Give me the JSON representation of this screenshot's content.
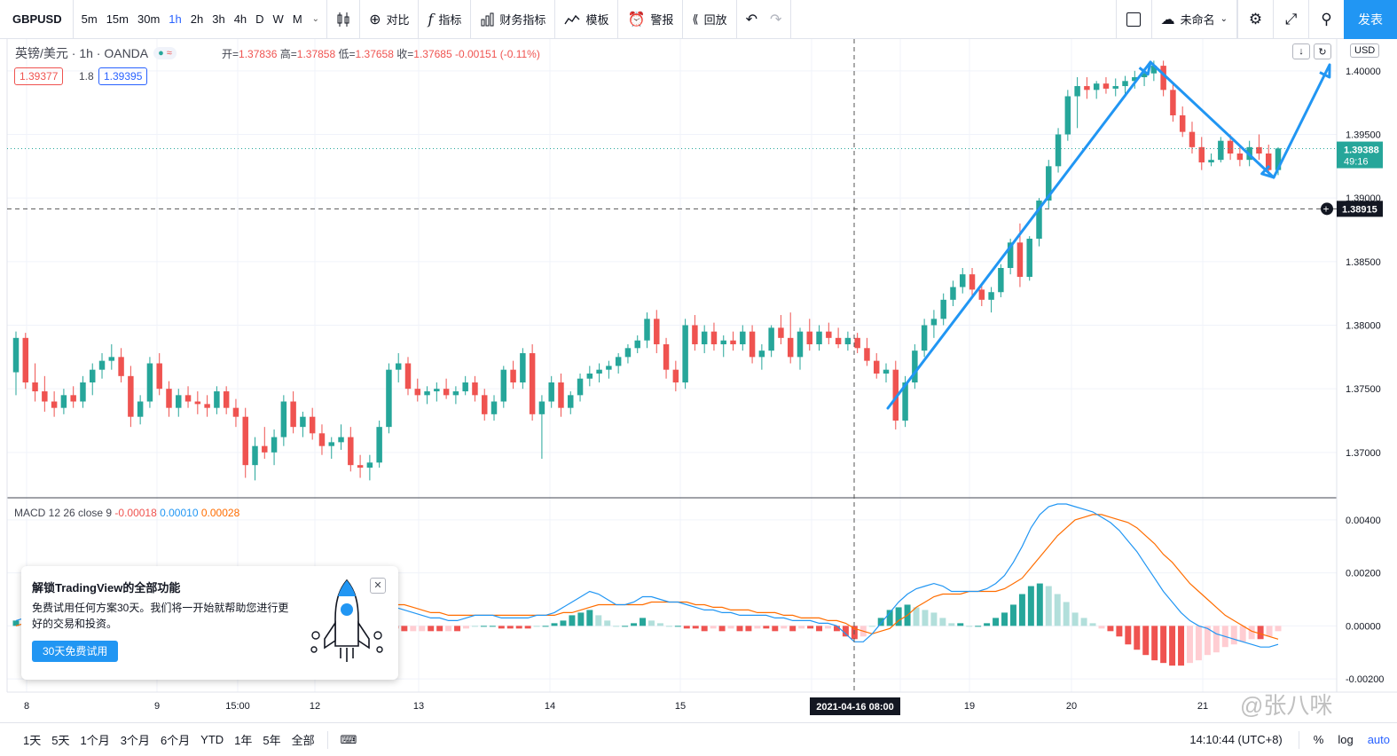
{
  "toolbar": {
    "symbol": "GBPUSD",
    "intervals": [
      "5m",
      "15m",
      "30m",
      "1h",
      "2h",
      "3h",
      "4h",
      "D",
      "W",
      "M"
    ],
    "active_interval": "1h",
    "compare_label": "对比",
    "indicators_label": "指标",
    "financials_label": "财务指标",
    "templates_label": "模板",
    "alert_label": "警报",
    "replay_label": "回放",
    "layout_name": "未命名",
    "publish_label": "发表"
  },
  "legend": {
    "title": "英镑/美元 · 1h · OANDA",
    "open_label": "开=",
    "open": "1.37836",
    "high_label": "高=",
    "high": "1.37858",
    "low_label": "低=",
    "low": "1.37658",
    "close_label": "收=",
    "close": "1.37685",
    "change": "-0.00151 (-0.11%)",
    "sell_price": "1.39377",
    "spread": "1.8",
    "buy_price": "1.39395"
  },
  "price_axis": {
    "currency": "USD",
    "current_price": "1.39388",
    "countdown": "49:16",
    "crosshair_price": "1.38915",
    "tick_labels": [
      "1.40000",
      "1.39500",
      "1.39000",
      "1.38500",
      "1.38000",
      "1.37500",
      "1.37000"
    ]
  },
  "macd": {
    "label": "MACD 12 26 close 9",
    "hist_value": "-0.00018",
    "macd_value": "0.00010",
    "signal_value": "0.00028",
    "tick_labels": [
      "0.00400",
      "0.00200",
      "0.00000",
      "-0.00200"
    ]
  },
  "time_axis": {
    "labels": [
      "8",
      "9",
      "15:00",
      "12",
      "13",
      "14",
      "15",
      "19",
      "20",
      "21"
    ],
    "crosshair_label": "2021-04-16  08:00"
  },
  "promo": {
    "title": "解锁TradingView的全部功能",
    "text": "免费试用任何方案30天。我们将一开始就帮助您进行更好的交易和投资。",
    "button_label": "30天免费试用"
  },
  "bottombar": {
    "ranges": [
      "1天",
      "5天",
      "1个月",
      "3个月",
      "6个月",
      "YTD",
      "1年",
      "5年",
      "全部"
    ],
    "clock": "14:10:44 (UTC+8)",
    "percent_label": "%",
    "log_label": "log",
    "auto_label": "auto"
  },
  "watermark": "@张八咪",
  "colors": {
    "up": "#26a69a",
    "down": "#ef5350",
    "macd_line": "#2196f3",
    "signal_line": "#ff6d00",
    "drawing": "#2196f3",
    "accent": "#2962ff",
    "publish": "#2196f3"
  },
  "chart_data": {
    "type": "candlestick",
    "symbol": "GBPUSD",
    "interval": "1h",
    "ylim": [
      1.3665,
      1.4025
    ],
    "ohlc": [
      [
        1.3763,
        1.3795,
        1.3745,
        1.379
      ],
      [
        1.379,
        1.3794,
        1.375,
        1.3755
      ],
      [
        1.3755,
        1.377,
        1.374,
        1.3748
      ],
      [
        1.3748,
        1.376,
        1.3732,
        1.374
      ],
      [
        1.374,
        1.3748,
        1.3728,
        1.3735
      ],
      [
        1.3735,
        1.375,
        1.373,
        1.3745
      ],
      [
        1.3745,
        1.3752,
        1.3735,
        1.374
      ],
      [
        1.374,
        1.376,
        1.3735,
        1.3755
      ],
      [
        1.3755,
        1.377,
        1.3745,
        1.3765
      ],
      [
        1.3765,
        1.3778,
        1.3758,
        1.3772
      ],
      [
        1.3772,
        1.3785,
        1.3765,
        1.3775
      ],
      [
        1.3775,
        1.3782,
        1.3755,
        1.376
      ],
      [
        1.376,
        1.3768,
        1.372,
        1.3728
      ],
      [
        1.3728,
        1.3745,
        1.3722,
        1.374
      ],
      [
        1.374,
        1.3775,
        1.3735,
        1.377
      ],
      [
        1.377,
        1.3778,
        1.3745,
        1.375
      ],
      [
        1.375,
        1.3756,
        1.3728,
        1.3735
      ],
      [
        1.3735,
        1.375,
        1.3728,
        1.3745
      ],
      [
        1.3745,
        1.3752,
        1.3735,
        1.374
      ],
      [
        1.374,
        1.3748,
        1.373,
        1.3738
      ],
      [
        1.3738,
        1.3745,
        1.3728,
        1.3735
      ],
      [
        1.3735,
        1.3752,
        1.373,
        1.3748
      ],
      [
        1.3748,
        1.3752,
        1.373,
        1.3735
      ],
      [
        1.3735,
        1.3742,
        1.372,
        1.3728
      ],
      [
        1.3728,
        1.3735,
        1.368,
        1.369
      ],
      [
        1.369,
        1.3712,
        1.3678,
        1.3705
      ],
      [
        1.3705,
        1.372,
        1.3695,
        1.37
      ],
      [
        1.37,
        1.3718,
        1.369,
        1.3712
      ],
      [
        1.3712,
        1.3745,
        1.3705,
        1.374
      ],
      [
        1.374,
        1.3748,
        1.3715,
        1.372
      ],
      [
        1.372,
        1.3732,
        1.3712,
        1.3728
      ],
      [
        1.3728,
        1.3735,
        1.371,
        1.3715
      ],
      [
        1.3715,
        1.3722,
        1.3698,
        1.3705
      ],
      [
        1.3705,
        1.3712,
        1.3695,
        1.3708
      ],
      [
        1.3708,
        1.3722,
        1.3702,
        1.3712
      ],
      [
        1.3712,
        1.372,
        1.3685,
        1.369
      ],
      [
        1.369,
        1.3698,
        1.368,
        1.3688
      ],
      [
        1.3688,
        1.3698,
        1.3678,
        1.3692
      ],
      [
        1.3692,
        1.3725,
        1.3688,
        1.372
      ],
      [
        1.372,
        1.377,
        1.3715,
        1.3765
      ],
      [
        1.3765,
        1.3778,
        1.3755,
        1.377
      ],
      [
        1.377,
        1.3775,
        1.3745,
        1.375
      ],
      [
        1.375,
        1.3758,
        1.374,
        1.3745
      ],
      [
        1.3745,
        1.3752,
        1.3738,
        1.3748
      ],
      [
        1.3748,
        1.3755,
        1.374,
        1.375
      ],
      [
        1.375,
        1.3758,
        1.3742,
        1.3745
      ],
      [
        1.3745,
        1.3752,
        1.3738,
        1.3748
      ],
      [
        1.3748,
        1.376,
        1.3745,
        1.3755
      ],
      [
        1.3755,
        1.376,
        1.374,
        1.3745
      ],
      [
        1.3745,
        1.375,
        1.3725,
        1.373
      ],
      [
        1.373,
        1.3745,
        1.3725,
        1.374
      ],
      [
        1.374,
        1.3768,
        1.3735,
        1.3765
      ],
      [
        1.3765,
        1.3772,
        1.375,
        1.3755
      ],
      [
        1.3755,
        1.3782,
        1.375,
        1.3778
      ],
      [
        1.3778,
        1.3785,
        1.3725,
        1.373
      ],
      [
        1.373,
        1.3745,
        1.3695,
        1.374
      ],
      [
        1.374,
        1.376,
        1.3735,
        1.3755
      ],
      [
        1.3755,
        1.3762,
        1.3728,
        1.3735
      ],
      [
        1.3735,
        1.3748,
        1.373,
        1.3745
      ],
      [
        1.3745,
        1.3762,
        1.374,
        1.3758
      ],
      [
        1.3758,
        1.3768,
        1.3752,
        1.3762
      ],
      [
        1.3762,
        1.377,
        1.3755,
        1.3765
      ],
      [
        1.3765,
        1.3772,
        1.3758,
        1.3768
      ],
      [
        1.3768,
        1.3778,
        1.3762,
        1.3775
      ],
      [
        1.3775,
        1.3785,
        1.377,
        1.3782
      ],
      [
        1.3782,
        1.3792,
        1.3778,
        1.3788
      ],
      [
        1.3788,
        1.381,
        1.3782,
        1.3805
      ],
      [
        1.3805,
        1.3812,
        1.3778,
        1.3785
      ],
      [
        1.3785,
        1.379,
        1.3758,
        1.3765
      ],
      [
        1.3765,
        1.3772,
        1.3748,
        1.3755
      ],
      [
        1.3755,
        1.3805,
        1.375,
        1.38
      ],
      [
        1.38,
        1.3808,
        1.378,
        1.3785
      ],
      [
        1.3785,
        1.38,
        1.3778,
        1.3795
      ],
      [
        1.3795,
        1.3802,
        1.378,
        1.3785
      ],
      [
        1.3785,
        1.3792,
        1.3775,
        1.3788
      ],
      [
        1.3788,
        1.3795,
        1.378,
        1.3785
      ],
      [
        1.3785,
        1.38,
        1.378,
        1.3795
      ],
      [
        1.3795,
        1.38,
        1.377,
        1.3775
      ],
      [
        1.3775,
        1.3785,
        1.3765,
        1.378
      ],
      [
        1.378,
        1.38,
        1.3775,
        1.3798
      ],
      [
        1.3798,
        1.3808,
        1.3785,
        1.379
      ],
      [
        1.379,
        1.381,
        1.377,
        1.3775
      ],
      [
        1.3775,
        1.3798,
        1.3765,
        1.3795
      ],
      [
        1.3795,
        1.3805,
        1.378,
        1.3785
      ],
      [
        1.3785,
        1.38,
        1.378,
        1.3795
      ],
      [
        1.3795,
        1.3802,
        1.3785,
        1.379
      ],
      [
        1.379,
        1.3798,
        1.3782,
        1.3785
      ],
      [
        1.3785,
        1.3795,
        1.378,
        1.379
      ],
      [
        1.379,
        1.3794,
        1.3778,
        1.3782
      ],
      [
        1.3782,
        1.379,
        1.3768,
        1.3772
      ],
      [
        1.3772,
        1.3778,
        1.3758,
        1.3762
      ],
      [
        1.3762,
        1.377,
        1.3755,
        1.3765
      ],
      [
        1.3765,
        1.3772,
        1.3718,
        1.3725
      ],
      [
        1.3725,
        1.376,
        1.372,
        1.3755
      ],
      [
        1.3755,
        1.3785,
        1.375,
        1.378
      ],
      [
        1.378,
        1.3805,
        1.3775,
        1.38
      ],
      [
        1.38,
        1.3812,
        1.379,
        1.3805
      ],
      [
        1.3805,
        1.3825,
        1.38,
        1.382
      ],
      [
        1.382,
        1.3835,
        1.3815,
        1.383
      ],
      [
        1.383,
        1.3845,
        1.3825,
        1.384
      ],
      [
        1.384,
        1.3845,
        1.3822,
        1.3828
      ],
      [
        1.3828,
        1.3832,
        1.3815,
        1.382
      ],
      [
        1.382,
        1.383,
        1.381,
        1.3826
      ],
      [
        1.3826,
        1.3848,
        1.3822,
        1.3845
      ],
      [
        1.3845,
        1.3868,
        1.384,
        1.3865
      ],
      [
        1.3865,
        1.388,
        1.383,
        1.3838
      ],
      [
        1.3838,
        1.387,
        1.3835,
        1.3868
      ],
      [
        1.3868,
        1.39,
        1.3862,
        1.3898
      ],
      [
        1.3898,
        1.393,
        1.3892,
        1.3925
      ],
      [
        1.3925,
        1.3955,
        1.392,
        1.395
      ],
      [
        1.395,
        1.3985,
        1.3945,
        1.398
      ],
      [
        1.398,
        1.3995,
        1.3955,
        1.3988
      ],
      [
        1.3988,
        1.3995,
        1.3978,
        1.3985
      ],
      [
        1.3985,
        1.3992,
        1.3978,
        1.399
      ],
      [
        1.399,
        1.3995,
        1.3982,
        1.3986
      ],
      [
        1.3986,
        1.3994,
        1.398,
        1.3988
      ],
      [
        1.3988,
        1.3996,
        1.3982,
        1.3992
      ],
      [
        1.3992,
        1.4,
        1.3986,
        1.3995
      ],
      [
        1.3995,
        1.4002,
        1.3988,
        1.3998
      ],
      [
        1.3998,
        1.4008,
        1.3992,
        1.4004
      ],
      [
        1.4004,
        1.4008,
        1.398,
        1.3985
      ],
      [
        1.3985,
        1.399,
        1.396,
        1.3965
      ],
      [
        1.3965,
        1.3972,
        1.3948,
        1.3952
      ],
      [
        1.3952,
        1.396,
        1.3935,
        1.394
      ],
      [
        1.394,
        1.3948,
        1.3922,
        1.3928
      ],
      [
        1.3928,
        1.3935,
        1.3925,
        1.393
      ],
      [
        1.393,
        1.3948,
        1.3928,
        1.3945
      ],
      [
        1.3945,
        1.395,
        1.393,
        1.3935
      ],
      [
        1.3935,
        1.3942,
        1.3925,
        1.393
      ],
      [
        1.393,
        1.3945,
        1.3925,
        1.394
      ],
      [
        1.394,
        1.395,
        1.393,
        1.3935
      ],
      [
        1.3935,
        1.3942,
        1.3918,
        1.3922
      ],
      [
        1.3922,
        1.394,
        1.3918,
        1.3939
      ]
    ],
    "macd": {
      "line": [
        0.0002,
        0.0003,
        0.0004,
        0.0005,
        0.0006,
        0.0006,
        0.0005,
        0.0004,
        0.0003,
        0.0003,
        0.0002,
        0.0002,
        0.0003,
        0.0004,
        0.0005,
        0.0006,
        0.0007,
        0.0006,
        0.0005,
        0.0004,
        0.0003,
        0.0003,
        0.0002,
        0.0001,
        0.0,
        -0.0001,
        0.0,
        0.0001,
        0.0002,
        0.0003,
        0.0004,
        0.0005,
        0.0006,
        0.0008,
        0.001,
        0.0012,
        0.0013,
        0.0012,
        0.0011,
        0.001,
        0.0009,
        0.0008,
        0.0008,
        0.0007,
        0.0006,
        0.0005,
        0.0004,
        0.0003,
        0.0003,
        0.0002,
        0.0002,
        0.0003,
        0.0004,
        0.0004,
        0.0004,
        0.0003,
        0.0003,
        0.0003,
        0.0003,
        0.0004,
        0.0004,
        0.0005,
        0.0007,
        0.0009,
        0.0011,
        0.0013,
        0.0012,
        0.001,
        0.0008,
        0.0008,
        0.0009,
        0.0011,
        0.0011,
        0.001,
        0.0009,
        0.0009,
        0.0008,
        0.0007,
        0.0006,
        0.0006,
        0.0005,
        0.0005,
        0.0004,
        0.0004,
        0.0004,
        0.0004,
        0.0003,
        0.0003,
        0.0002,
        0.0002,
        0.0002,
        0.0001,
        0.0001,
        0.0,
        -0.0003,
        -0.0006,
        -0.0006,
        -0.0003,
        0.0001,
        0.0005,
        0.0009,
        0.0012,
        0.0014,
        0.0015,
        0.0016,
        0.0015,
        0.0013,
        0.0013,
        0.0013,
        0.0013,
        0.0014,
        0.0016,
        0.0019,
        0.0024,
        0.003,
        0.0037,
        0.0042,
        0.0045,
        0.0046,
        0.0046,
        0.0045,
        0.0044,
        0.0043,
        0.0041,
        0.0039,
        0.0036,
        0.0032,
        0.0028,
        0.0023,
        0.0018,
        0.0013,
        0.0009,
        0.0005,
        0.0002,
        0.0,
        -0.0001,
        -0.0003,
        -0.0004,
        -0.0005,
        -0.0006,
        -0.0007,
        -0.0008,
        -0.0008,
        -0.0007
      ],
      "signal": [
        0.0,
        0.0001,
        0.0002,
        0.0003,
        0.0003,
        0.0004,
        0.0004,
        0.0004,
        0.0004,
        0.0003,
        0.0003,
        0.0003,
        0.0003,
        0.0003,
        0.0004,
        0.0004,
        0.0005,
        0.0005,
        0.0005,
        0.0005,
        0.0004,
        0.0004,
        0.0003,
        0.0003,
        0.0002,
        0.0001,
        0.0001,
        0.0001,
        0.0001,
        0.0002,
        0.0002,
        0.0003,
        0.0004,
        0.0004,
        0.0005,
        0.0006,
        0.0007,
        0.0008,
        0.0008,
        0.0009,
        0.0009,
        0.0009,
        0.0009,
        0.0008,
        0.0008,
        0.0007,
        0.0006,
        0.0005,
        0.0005,
        0.0004,
        0.0004,
        0.0004,
        0.0004,
        0.0004,
        0.0004,
        0.0004,
        0.0004,
        0.0004,
        0.0004,
        0.0004,
        0.0004,
        0.0004,
        0.0005,
        0.0005,
        0.0006,
        0.0007,
        0.0008,
        0.0008,
        0.0008,
        0.0008,
        0.0008,
        0.0008,
        0.0009,
        0.0009,
        0.0009,
        0.0009,
        0.0009,
        0.0008,
        0.0008,
        0.0007,
        0.0007,
        0.0006,
        0.0006,
        0.0006,
        0.0005,
        0.0005,
        0.0005,
        0.0004,
        0.0004,
        0.0003,
        0.0003,
        0.0003,
        0.0002,
        0.0002,
        0.0001,
        -0.0001,
        -0.0002,
        -0.0003,
        -0.0002,
        -0.0001,
        0.0002,
        0.0004,
        0.0007,
        0.0009,
        0.0011,
        0.0012,
        0.0012,
        0.0012,
        0.0013,
        0.0013,
        0.0013,
        0.0013,
        0.0014,
        0.0016,
        0.0018,
        0.0022,
        0.0026,
        0.003,
        0.0034,
        0.0037,
        0.004,
        0.0041,
        0.0042,
        0.0042,
        0.0041,
        0.004,
        0.0039,
        0.0037,
        0.0034,
        0.0031,
        0.0027,
        0.0024,
        0.002,
        0.0016,
        0.0013,
        0.001,
        0.0007,
        0.0004,
        0.0002,
        0.0,
        -0.0002,
        -0.0003,
        -0.0004,
        -0.0005
      ],
      "ylim": [
        -0.0025,
        0.0048
      ]
    }
  }
}
